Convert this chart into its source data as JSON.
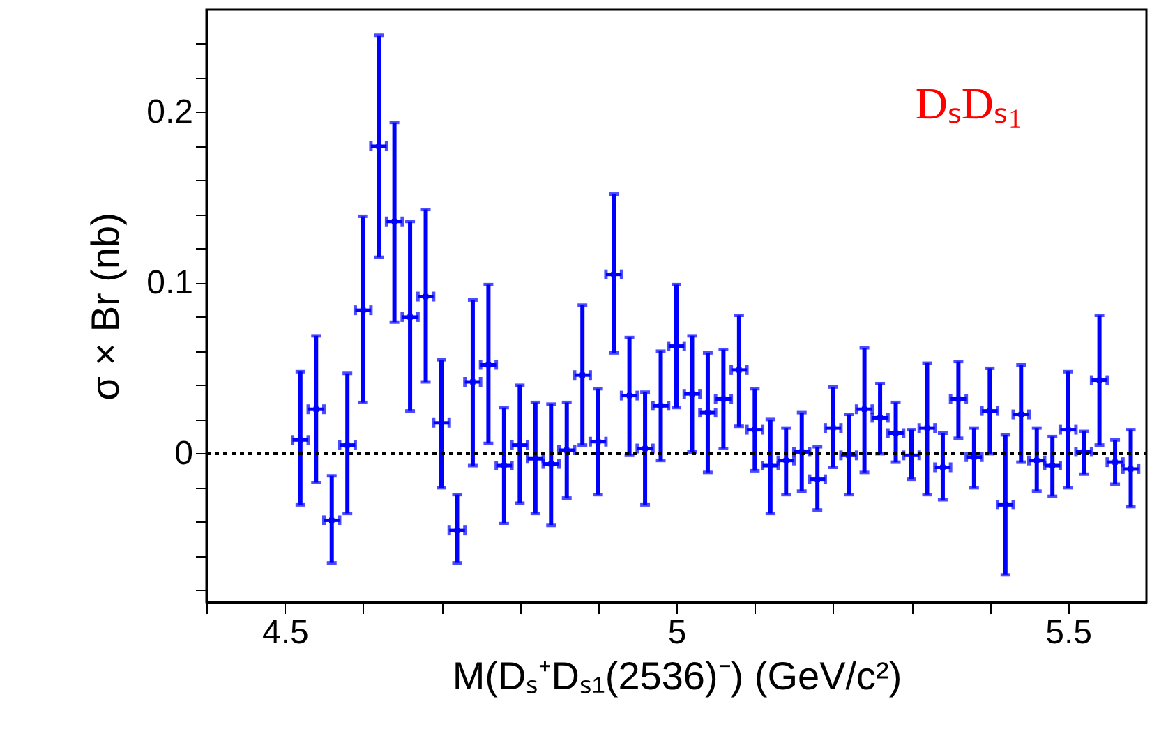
{
  "chart_data": {
    "type": "scatter",
    "xlabel": "M(Dₛ⁺Dₛ₁(2536)⁻) (GeV/c²)",
    "ylabel": "σ × Br (nb)",
    "annotations": [
      "DₛDₛ₁"
    ],
    "x": [
      4.52,
      4.54,
      4.56,
      4.58,
      4.6,
      4.62,
      4.64,
      4.66,
      4.68,
      4.7,
      4.72,
      4.74,
      4.76,
      4.78,
      4.8,
      4.82,
      4.84,
      4.86,
      4.88,
      4.9,
      4.92,
      4.94,
      4.96,
      4.98,
      5.0,
      5.02,
      5.04,
      5.06,
      5.08,
      5.1,
      5.12,
      5.14,
      5.16,
      5.18,
      5.2,
      5.22,
      5.24,
      5.26,
      5.28,
      5.3,
      5.32,
      5.34,
      5.36,
      5.38,
      5.4,
      5.42,
      5.44,
      5.46,
      5.48,
      5.5,
      5.52,
      5.54,
      5.56,
      5.58
    ],
    "series": [
      {
        "color": "#0000ff",
        "values": [
          0.008,
          0.026,
          -0.039,
          0.005,
          0.084,
          0.18,
          0.136,
          0.08,
          0.092,
          0.018,
          -0.045,
          0.042,
          0.052,
          -0.007,
          0.005,
          -0.003,
          -0.006,
          0.002,
          0.046,
          0.007,
          0.105,
          0.034,
          0.003,
          0.028,
          0.063,
          0.035,
          0.024,
          0.032,
          0.049,
          0.014,
          -0.007,
          -0.004,
          0.001,
          -0.015,
          0.015,
          -0.001,
          0.026,
          0.021,
          0.012,
          -0.001,
          0.015,
          -0.008,
          0.032,
          -0.002,
          0.025,
          -0.03,
          0.023,
          -0.004,
          -0.007,
          0.014,
          0.001,
          0.043,
          -0.005,
          -0.009
        ],
        "errors": [
          [
            -0.03,
            0.048
          ],
          [
            -0.017,
            0.069
          ],
          [
            -0.064,
            -0.013
          ],
          [
            -0.035,
            0.047
          ],
          [
            0.03,
            0.139
          ],
          [
            0.115,
            0.245
          ],
          [
            0.077,
            0.194
          ],
          [
            0.025,
            0.136
          ],
          [
            0.042,
            0.143
          ],
          [
            -0.02,
            0.055
          ],
          [
            -0.064,
            -0.024
          ],
          [
            -0.007,
            0.09
          ],
          [
            0.006,
            0.099
          ],
          [
            -0.041,
            0.027
          ],
          [
            -0.029,
            0.04
          ],
          [
            -0.035,
            0.03
          ],
          [
            -0.042,
            0.029
          ],
          [
            -0.026,
            0.03
          ],
          [
            0.005,
            0.087
          ],
          [
            -0.024,
            0.038
          ],
          [
            0.059,
            0.152
          ],
          [
            -0.001,
            0.068
          ],
          [
            -0.03,
            0.036
          ],
          [
            -0.004,
            0.06
          ],
          [
            0.027,
            0.099
          ],
          [
            0.001,
            0.069
          ],
          [
            -0.011,
            0.059
          ],
          [
            0.003,
            0.061
          ],
          [
            0.016,
            0.081
          ],
          [
            -0.01,
            0.038
          ],
          [
            -0.035,
            0.02
          ],
          [
            -0.024,
            0.015
          ],
          [
            -0.022,
            0.024
          ],
          [
            -0.033,
            0.004
          ],
          [
            -0.008,
            0.039
          ],
          [
            -0.024,
            0.023
          ],
          [
            -0.011,
            0.062
          ],
          [
            0.0,
            0.041
          ],
          [
            -0.005,
            0.03
          ],
          [
            -0.015,
            0.014
          ],
          [
            -0.024,
            0.053
          ],
          [
            -0.027,
            0.012
          ],
          [
            0.009,
            0.054
          ],
          [
            -0.02,
            0.015
          ],
          [
            0.0,
            0.05
          ],
          [
            -0.071,
            0.011
          ],
          [
            -0.005,
            0.052
          ],
          [
            -0.022,
            0.015
          ],
          [
            -0.025,
            0.01
          ],
          [
            -0.02,
            0.048
          ],
          [
            -0.012,
            0.013
          ],
          [
            0.005,
            0.081
          ],
          [
            -0.018,
            0.008
          ],
          [
            -0.031,
            0.014
          ]
        ],
        "xerrors": [
          0.01,
          0.01,
          0.01,
          0.01,
          0.01,
          0.01,
          0.01,
          0.01,
          0.01,
          0.01,
          0.01,
          0.01,
          0.01,
          0.01,
          0.01,
          0.01,
          0.01,
          0.01,
          0.01,
          0.01,
          0.01,
          0.01,
          0.01,
          0.01,
          0.01,
          0.01,
          0.01,
          0.01,
          0.01,
          0.01,
          0.01,
          0.01,
          0.01,
          0.01,
          0.01,
          0.01,
          0.01,
          0.01,
          0.01,
          0.01,
          0.01,
          0.01,
          0.01,
          0.01,
          0.01,
          0.01,
          0.01,
          0.01,
          0.01,
          0.01,
          0.01,
          0.01,
          0.01,
          0.01
        ]
      }
    ],
    "xlim": [
      4.4,
      5.6
    ],
    "xticks": [
      {
        "value": 4.4,
        "label": null
      },
      4.5,
      {
        "value": 4.6,
        "label": null
      },
      {
        "value": 4.7,
        "label": null
      },
      {
        "value": 4.8,
        "label": null
      },
      {
        "value": 4.9,
        "label": null
      },
      5,
      {
        "value": 5.1,
        "label": null
      },
      {
        "value": 5.2,
        "label": null
      },
      {
        "value": 5.3,
        "label": null
      },
      {
        "value": 5.4,
        "label": null
      },
      5.5
    ],
    "ylim": [
      -0.087,
      0.26
    ],
    "yticks": [
      {
        "value": -0.08,
        "label": null
      },
      {
        "value": -0.06,
        "label": null
      },
      {
        "value": -0.04,
        "label": null
      },
      {
        "value": -0.02,
        "label": null
      },
      0,
      {
        "value": 0.02,
        "label": null
      },
      {
        "value": 0.04,
        "label": null
      },
      {
        "value": 0.06,
        "label": null
      },
      {
        "value": 0.08,
        "label": null
      },
      0.1,
      {
        "value": 0.12,
        "label": null
      },
      {
        "value": 0.14,
        "label": null
      },
      {
        "value": 0.16,
        "label": null
      },
      {
        "value": 0.18,
        "label": null
      },
      0.2,
      {
        "value": 0.22,
        "label": null
      },
      {
        "value": 0.24,
        "label": null
      }
    ],
    "ref_lines": [
      {
        "axis": "y",
        "value": 0,
        "color": "#000000",
        "line_style": "dotted"
      }
    ],
    "marker": "square",
    "grid": false
  }
}
